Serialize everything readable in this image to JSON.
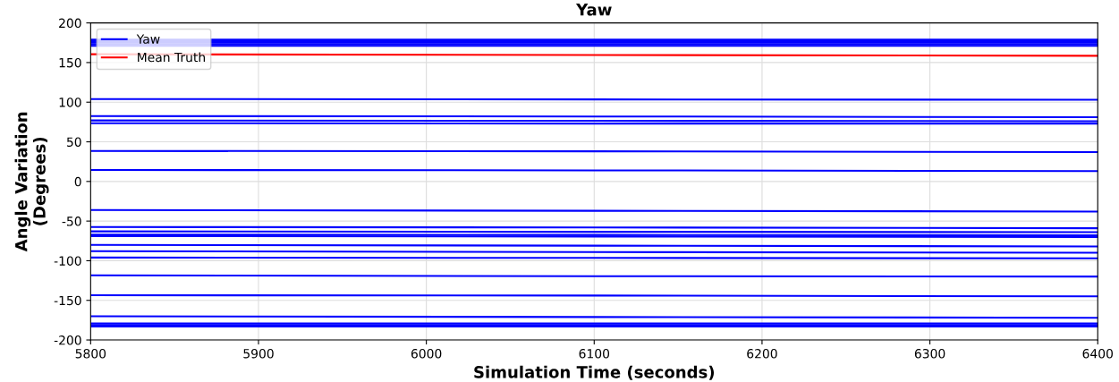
{
  "chart_data": {
    "type": "line",
    "title": "Yaw",
    "xlabel": "Simulation Time (seconds)",
    "ylabel": "Angle Variation\n(Degrees)",
    "xlim": [
      5800,
      6400
    ],
    "xticks": [
      5800,
      5900,
      6000,
      6100,
      6200,
      6300,
      6400
    ],
    "ylim": [
      -200,
      200
    ],
    "yticks": [
      -200,
      -150,
      -100,
      -50,
      0,
      50,
      100,
      150,
      200
    ],
    "grid": true,
    "legend": "top left",
    "marker": "none",
    "line_style": "solid",
    "x": [
      5800,
      6100,
      6400
    ],
    "series": [
      {
        "name": "Yaw",
        "color": "#0000ff",
        "values": [
          179,
          179,
          179
        ]
      },
      {
        "color": "#0000ff",
        "values": [
          177,
          177,
          177
        ]
      },
      {
        "color": "#0000ff",
        "values": [
          175,
          175,
          175
        ]
      },
      {
        "color": "#0000ff",
        "values": [
          173,
          173,
          173
        ]
      },
      {
        "color": "#0000ff",
        "values": [
          171,
          171,
          171
        ]
      },
      {
        "color": "#0000ff",
        "values": [
          104,
          103.5,
          103
        ]
      },
      {
        "color": "#0000ff",
        "values": [
          82.5,
          82,
          81
        ]
      },
      {
        "color": "#0000ff",
        "values": [
          77,
          76.5,
          76
        ]
      },
      {
        "color": "#0000ff",
        "values": [
          73.5,
          73,
          73
        ]
      },
      {
        "color": "#0000ff",
        "values": [
          38.5,
          38,
          37
        ]
      },
      {
        "color": "#0000ff",
        "values": [
          14.5,
          14,
          13
        ]
      },
      {
        "color": "#0000ff",
        "values": [
          -36,
          -37,
          -38
        ]
      },
      {
        "color": "#0000ff",
        "values": [
          -57.5,
          -58,
          -59
        ]
      },
      {
        "color": "#0000ff",
        "values": [
          -63,
          -63.5,
          -64
        ]
      },
      {
        "color": "#0000ff",
        "values": [
          -67,
          -67.5,
          -68
        ]
      },
      {
        "color": "#0000ff",
        "values": [
          -69,
          -69.5,
          -70
        ]
      },
      {
        "color": "#0000ff",
        "values": [
          -80,
          -81,
          -82
        ]
      },
      {
        "color": "#0000ff",
        "values": [
          -88,
          -89,
          -90
        ]
      },
      {
        "color": "#0000ff",
        "values": [
          -96,
          -96.5,
          -97
        ]
      },
      {
        "color": "#0000ff",
        "values": [
          -118.5,
          -119.5,
          -120
        ]
      },
      {
        "color": "#0000ff",
        "values": [
          -143.5,
          -144,
          -145
        ]
      },
      {
        "color": "#0000ff",
        "values": [
          -170,
          -171,
          -172
        ]
      },
      {
        "color": "#0000ff",
        "values": [
          -179,
          -179,
          -179
        ]
      },
      {
        "color": "#0000ff",
        "values": [
          -181,
          -181,
          -181
        ]
      },
      {
        "color": "#0000ff",
        "values": [
          -183,
          -183,
          -183
        ]
      },
      {
        "name": "Mean Truth",
        "color": "#ff0000",
        "values": [
          160.5,
          159.5,
          158.5
        ]
      }
    ]
  }
}
